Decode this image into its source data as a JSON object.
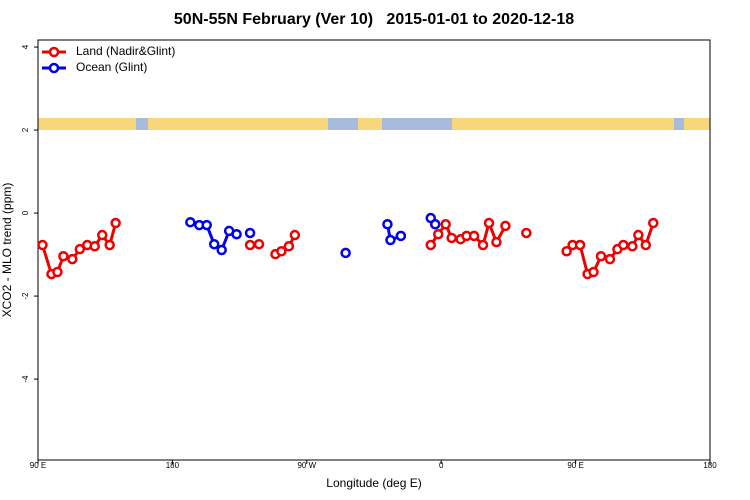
{
  "chart_data": {
    "type": "line",
    "title": "50N-55N February (Ver 10)   2015-01-01 to 2020-12-18",
    "x_label": "Longitude (deg E)",
    "y_label": "XCO2 - MLO trend (ppm)",
    "xlim": [
      90,
      540
    ],
    "xticks": [
      {
        "value": 90,
        "label": "90 E"
      },
      {
        "value": 180,
        "label": "180"
      },
      {
        "value": 270,
        "label": "90 W"
      },
      {
        "value": 360,
        "label": "0"
      },
      {
        "value": 450,
        "label": "90 E"
      },
      {
        "value": 540,
        "label": "180"
      }
    ],
    "ylim": [
      -5.95,
      4.17
    ],
    "yticks": [
      -4,
      -2,
      0,
      2,
      4
    ],
    "legend": "topleft",
    "series": [
      {
        "name": "Land (Nadir&Glint)",
        "color": "#ee0000",
        "x": [
          93,
          99,
          103,
          107,
          113,
          118,
          123,
          128,
          133,
          138,
          142,
          null,
          232,
          238,
          null,
          249,
          253,
          258,
          262,
          null,
          353,
          358,
          363,
          367,
          373,
          377,
          382,
          388,
          392,
          397,
          403,
          null,
          417,
          null,
          444,
          448,
          453,
          458,
          462,
          467,
          473,
          478,
          482,
          488,
          492,
          497,
          502
        ],
        "values": [
          -0.77,
          -1.47,
          -1.42,
          -1.04,
          -1.11,
          -0.87,
          -0.77,
          -0.8,
          -0.53,
          -0.77,
          -0.24,
          null,
          -0.77,
          -0.75,
          null,
          -0.99,
          -0.92,
          -0.8,
          -0.53,
          null,
          -0.77,
          -0.51,
          -0.27,
          -0.6,
          -0.63,
          -0.55,
          -0.55,
          -0.77,
          -0.24,
          -0.7,
          -0.31,
          null,
          -0.48,
          null,
          -0.92,
          -0.77,
          -0.77,
          -1.47,
          -1.42,
          -1.04,
          -1.11,
          -0.87,
          -0.77,
          -0.8,
          -0.53,
          -0.77,
          -0.24
        ]
      },
      {
        "name": "Ocean (Glint)",
        "color": "#0000ee",
        "x": [
          192,
          198,
          203,
          208,
          213,
          218,
          223,
          null,
          232,
          null,
          296,
          null,
          324,
          326,
          333,
          null,
          353,
          356
        ],
        "values": [
          -0.22,
          -0.29,
          -0.29,
          -0.75,
          -0.89,
          -0.43,
          -0.51,
          null,
          -0.48,
          null,
          -0.96,
          null,
          -0.27,
          -0.65,
          -0.55,
          null,
          -0.12,
          -0.27
        ]
      }
    ]
  }
}
